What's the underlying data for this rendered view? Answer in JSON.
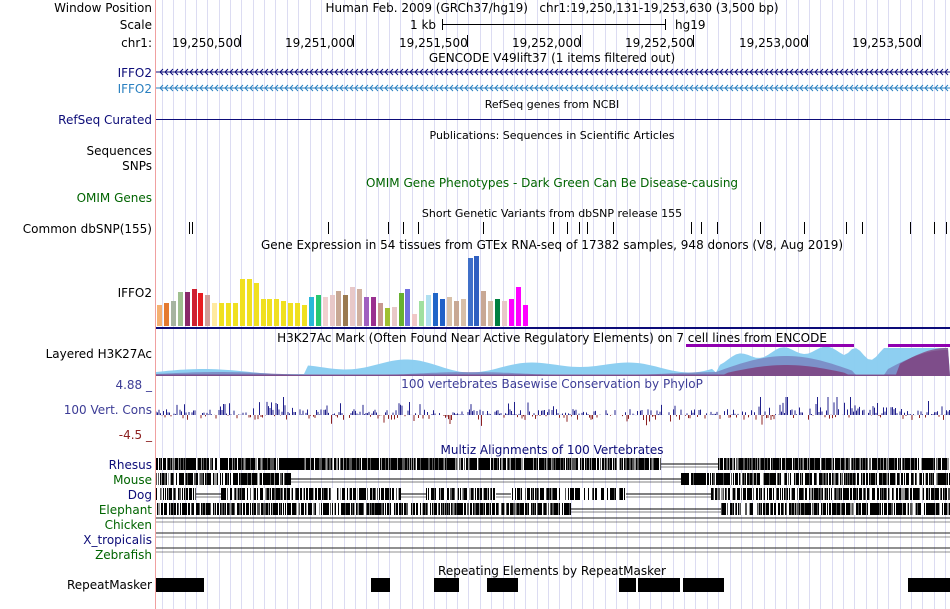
{
  "labels": {
    "window_position": "Window Position",
    "scale": "Scale",
    "chrom": "chr1:",
    "gencode_1": "IFFO2",
    "gencode_2": "IFFO2",
    "refseq": "RefSeq Curated",
    "sequences": "Sequences",
    "snps": "SNPs",
    "omim": "OMIM Genes",
    "dbsnp": "Common dbSNP(155)",
    "gtex_gene": "IFFO2",
    "h3k27ac": "Layered H3K27Ac",
    "cons_max": "4.88 _",
    "cons_name": "100 Vert. Cons",
    "cons_min": "-4.5 _",
    "species": [
      "Rhesus",
      "Mouse",
      "Dog",
      "Elephant",
      "Chicken",
      "X_tropicalis",
      "Zebrafish"
    ],
    "repeatmasker": "RepeatMasker"
  },
  "header": {
    "assembly": "Human Feb. 2009 (GRCh37/hg19)",
    "position": "chr1:19,250,131-19,253,630 (3,500 bp)",
    "scale_value": "1 kb",
    "scale_db": "hg19",
    "ticks": [
      "19,250,500",
      "19,251,000",
      "19,251,500",
      "19,252,000",
      "19,252,500",
      "19,253,000",
      "19,253,500"
    ]
  },
  "tracks": {
    "gencode_title": "GENCODE V49lift37 (1 items filtered out)",
    "refseq_title": "RefSeq genes from NCBI",
    "pubs_title": "Publications: Sequences in Scientific Articles",
    "omim_title": "OMIM Gene Phenotypes - Dark Green Can Be Disease-causing",
    "dbsnp_title": "Short Genetic Variants from dbSNP release 155",
    "gtex_title": "Gene Expression in 54 tissues from GTEx RNA-seq of 17382 samples, 948 donors (V8, Aug 2019)",
    "h3k27ac_title": "H3K27Ac Mark (Often Found Near Active Regulatory Elements) on 7 cell lines from ENCODE",
    "cons_title": "100 vertebrates Basewise Conservation by PhyloP",
    "multiz_title": "Multiz Alignments of 100 Vertebrates",
    "repeat_title": "Repeating Elements by RepeatMasker"
  },
  "colors": {
    "gencode_dark": "#0c0c78",
    "gencode_light": "#2a80c0",
    "refseq": "#0c0c78",
    "omim_text": "#006400",
    "cons_label": "#3c3c96",
    "cons_pos": "#20208c",
    "cons_neg": "#8c2020",
    "h3k27ac_bar": "#9000b0"
  },
  "gtex": {
    "values": [
      22,
      24,
      26,
      35,
      35,
      38,
      34,
      32,
      24,
      24,
      24,
      24,
      48,
      48,
      44,
      28,
      28,
      28,
      26,
      24,
      24,
      22,
      30,
      32,
      30,
      32,
      36,
      32,
      40,
      38,
      30,
      30,
      24,
      18,
      20,
      34,
      38,
      12,
      26,
      32,
      34,
      28,
      30,
      26,
      28,
      70,
      72,
      36,
      26,
      28,
      26,
      28,
      40,
      22
    ],
    "colors": [
      "#f5b071",
      "#e47a30",
      "#a6b4a0",
      "#a0c090",
      "#8a2a6a",
      "#cf2030",
      "#e81d20",
      "#cfa09a",
      "#ffeaa0",
      "#f0e020",
      "#f0e020",
      "#f0e020",
      "#f0e020",
      "#f0e020",
      "#f0e020",
      "#f0e020",
      "#f0e020",
      "#f0e020",
      "#f0e020",
      "#f0e020",
      "#f0e020",
      "#f0e020",
      "#29b8d8",
      "#28c870",
      "#f0d0d0",
      "#e8c8c8",
      "#c8a894",
      "#9a7a50",
      "#e8c8c8",
      "#d0b0a0",
      "#a060c0",
      "#9a3090",
      "#c89890",
      "#a0c030",
      "#e8c8c8",
      "#68b030",
      "#7070e0",
      "#f0c8c8",
      "#a0e0a0",
      "#b0e0f0",
      "#2066c8",
      "#2060c8",
      "#d8c0a8",
      "#c8a894",
      "#d8c0a8",
      "#4070c8",
      "#3060c0",
      "#c8a894",
      "#d8c0a8",
      "#008040",
      "#e8c8c8",
      "#ff00ff",
      "#ff00ff",
      "#ff00ff"
    ]
  }
}
